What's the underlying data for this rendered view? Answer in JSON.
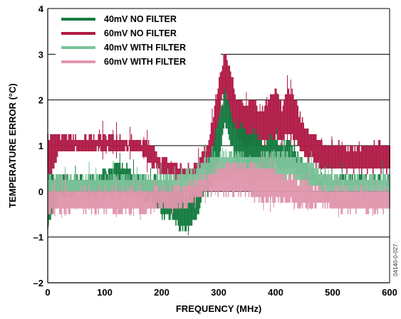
{
  "chart_data": {
    "type": "line",
    "title": "",
    "xlabel": "FREQUENCY (MHz)",
    "ylabel": "TEMPERATURE ERROR (°C)",
    "xlim": [
      0,
      600
    ],
    "ylim": [
      -2,
      4
    ],
    "xticks": [
      0,
      100,
      200,
      300,
      400,
      500,
      600
    ],
    "yticks": [
      -2,
      -1,
      0,
      1,
      2,
      3,
      4
    ],
    "xtick_labels": [
      "0",
      "100",
      "200",
      "300",
      "400",
      "500",
      "600"
    ],
    "ytick_labels": [
      "–2",
      "–1",
      "0",
      "1",
      "2",
      "3",
      "4"
    ],
    "grid": "horizontal",
    "legend_position": "top-left",
    "figure_number": "04140-0-027",
    "colors": {
      "axis": "#000000",
      "grid": "#000000"
    },
    "series": [
      {
        "name": "60mV NO FILTER",
        "color": "#b01a46",
        "x": [
          0,
          20,
          40,
          60,
          80,
          100,
          120,
          140,
          160,
          180,
          200,
          220,
          240,
          260,
          270,
          280,
          290,
          300,
          305,
          310,
          315,
          320,
          330,
          340,
          350,
          360,
          370,
          380,
          390,
          400,
          410,
          420,
          430,
          440,
          450,
          460,
          470,
          480,
          500,
          520,
          540,
          560,
          580,
          600
        ],
        "low": [
          0.2,
          0.9,
          0.9,
          0.9,
          0.9,
          0.9,
          0.9,
          0.9,
          0.9,
          0.6,
          0.4,
          0.3,
          0.3,
          0.4,
          0.5,
          0.6,
          0.9,
          1.6,
          2.0,
          2.2,
          1.9,
          1.6,
          1.2,
          1.1,
          1.0,
          1.1,
          1.0,
          1.1,
          1.1,
          1.2,
          1.1,
          1.3,
          1.1,
          1.0,
          0.8,
          0.7,
          0.6,
          0.5,
          0.5,
          0.5,
          0.5,
          0.5,
          0.5,
          0.5
        ],
        "high": [
          1.2,
          1.2,
          1.2,
          1.1,
          1.2,
          1.2,
          1.2,
          1.1,
          1.1,
          1.0,
          0.7,
          0.6,
          0.5,
          0.6,
          0.8,
          1.0,
          1.6,
          2.4,
          2.7,
          3.0,
          2.9,
          2.6,
          2.0,
          1.9,
          1.9,
          2.0,
          1.7,
          1.8,
          2.1,
          2.2,
          1.8,
          2.3,
          2.1,
          1.7,
          1.4,
          1.2,
          1.2,
          1.0,
          1.0,
          1.0,
          0.9,
          1.0,
          1.0,
          1.0
        ]
      },
      {
        "name": "40mV NO FILTER",
        "color": "#137a3e",
        "x": [
          0,
          20,
          40,
          60,
          80,
          100,
          120,
          140,
          160,
          180,
          200,
          220,
          230,
          240,
          250,
          260,
          270,
          280,
          290,
          300,
          305,
          310,
          315,
          320,
          330,
          340,
          350,
          360,
          370,
          380,
          390,
          400,
          410,
          420,
          430,
          440,
          450,
          460,
          470,
          480,
          500,
          520,
          540,
          560,
          580,
          600
        ],
        "low": [
          -0.7,
          -0.1,
          -0.1,
          0.0,
          -0.1,
          0.0,
          0.0,
          0.0,
          -0.1,
          -0.2,
          -0.5,
          -0.6,
          -0.8,
          -0.8,
          -0.8,
          -0.6,
          -0.1,
          0.0,
          0.3,
          0.7,
          1.2,
          1.5,
          1.3,
          1.1,
          0.6,
          0.7,
          0.5,
          0.7,
          0.5,
          0.5,
          0.6,
          0.6,
          0.5,
          0.5,
          0.5,
          0.4,
          0.3,
          0.2,
          0.2,
          0.2,
          0.2,
          0.2,
          0.2,
          0.2,
          0.2,
          0.2
        ],
        "high": [
          0.3,
          0.3,
          0.3,
          0.3,
          0.3,
          0.4,
          0.6,
          0.5,
          0.3,
          0.3,
          0.2,
          0.1,
          0.0,
          -0.1,
          0.0,
          0.1,
          0.3,
          0.6,
          1.0,
          1.6,
          1.9,
          2.2,
          2.0,
          1.7,
          1.3,
          1.4,
          1.2,
          1.4,
          1.1,
          1.0,
          1.2,
          1.1,
          1.0,
          1.1,
          0.9,
          0.8,
          0.6,
          0.4,
          0.3,
          0.3,
          0.3,
          0.3,
          0.3,
          0.3,
          0.3,
          0.3
        ]
      },
      {
        "name": "40mV WITH FILTER",
        "color": "#7cc29a",
        "x": [
          0,
          20,
          40,
          60,
          80,
          100,
          120,
          140,
          160,
          180,
          200,
          220,
          240,
          260,
          280,
          300,
          320,
          340,
          360,
          380,
          400,
          420,
          440,
          460,
          480,
          500,
          520,
          540,
          560,
          580,
          600
        ],
        "low": [
          0.0,
          0.0,
          0.0,
          0.0,
          0.0,
          0.0,
          0.0,
          0.0,
          -0.1,
          0.0,
          0.0,
          0.0,
          0.0,
          0.0,
          0.2,
          0.3,
          0.3,
          0.4,
          0.2,
          0.3,
          0.3,
          0.3,
          0.2,
          0.1,
          0.0,
          0.0,
          0.0,
          0.0,
          0.0,
          0.0,
          0.0
        ],
        "high": [
          0.3,
          0.3,
          0.3,
          0.3,
          0.3,
          0.3,
          0.3,
          0.3,
          0.3,
          0.3,
          0.3,
          0.3,
          0.4,
          0.5,
          0.7,
          0.8,
          0.8,
          0.8,
          0.7,
          0.8,
          0.8,
          0.8,
          0.7,
          0.6,
          0.4,
          0.3,
          0.3,
          0.3,
          0.3,
          0.3,
          0.3
        ]
      },
      {
        "name": "60mV WITH FILTER",
        "color": "#e096ad",
        "x": [
          0,
          20,
          40,
          60,
          80,
          100,
          120,
          140,
          160,
          180,
          200,
          220,
          240,
          260,
          280,
          300,
          320,
          340,
          360,
          380,
          400,
          420,
          440,
          460,
          480,
          500,
          520,
          540,
          560,
          580,
          600
        ],
        "low": [
          -0.5,
          -0.4,
          -0.4,
          -0.4,
          -0.4,
          -0.4,
          -0.4,
          -0.4,
          -0.4,
          -0.4,
          -0.3,
          -0.4,
          -0.3,
          -0.2,
          0.0,
          0.0,
          0.0,
          0.0,
          -0.1,
          -0.2,
          -0.2,
          -0.2,
          -0.3,
          -0.3,
          -0.3,
          -0.4,
          -0.4,
          -0.4,
          -0.4,
          -0.4,
          -0.4
        ],
        "high": [
          0.0,
          0.0,
          0.0,
          0.0,
          0.0,
          0.0,
          0.0,
          0.0,
          0.0,
          0.0,
          0.0,
          0.0,
          0.1,
          0.2,
          0.3,
          0.5,
          0.6,
          0.6,
          0.6,
          0.5,
          0.4,
          0.3,
          0.2,
          0.1,
          0.0,
          0.0,
          0.0,
          0.0,
          0.0,
          0.0,
          0.0
        ]
      }
    ]
  }
}
